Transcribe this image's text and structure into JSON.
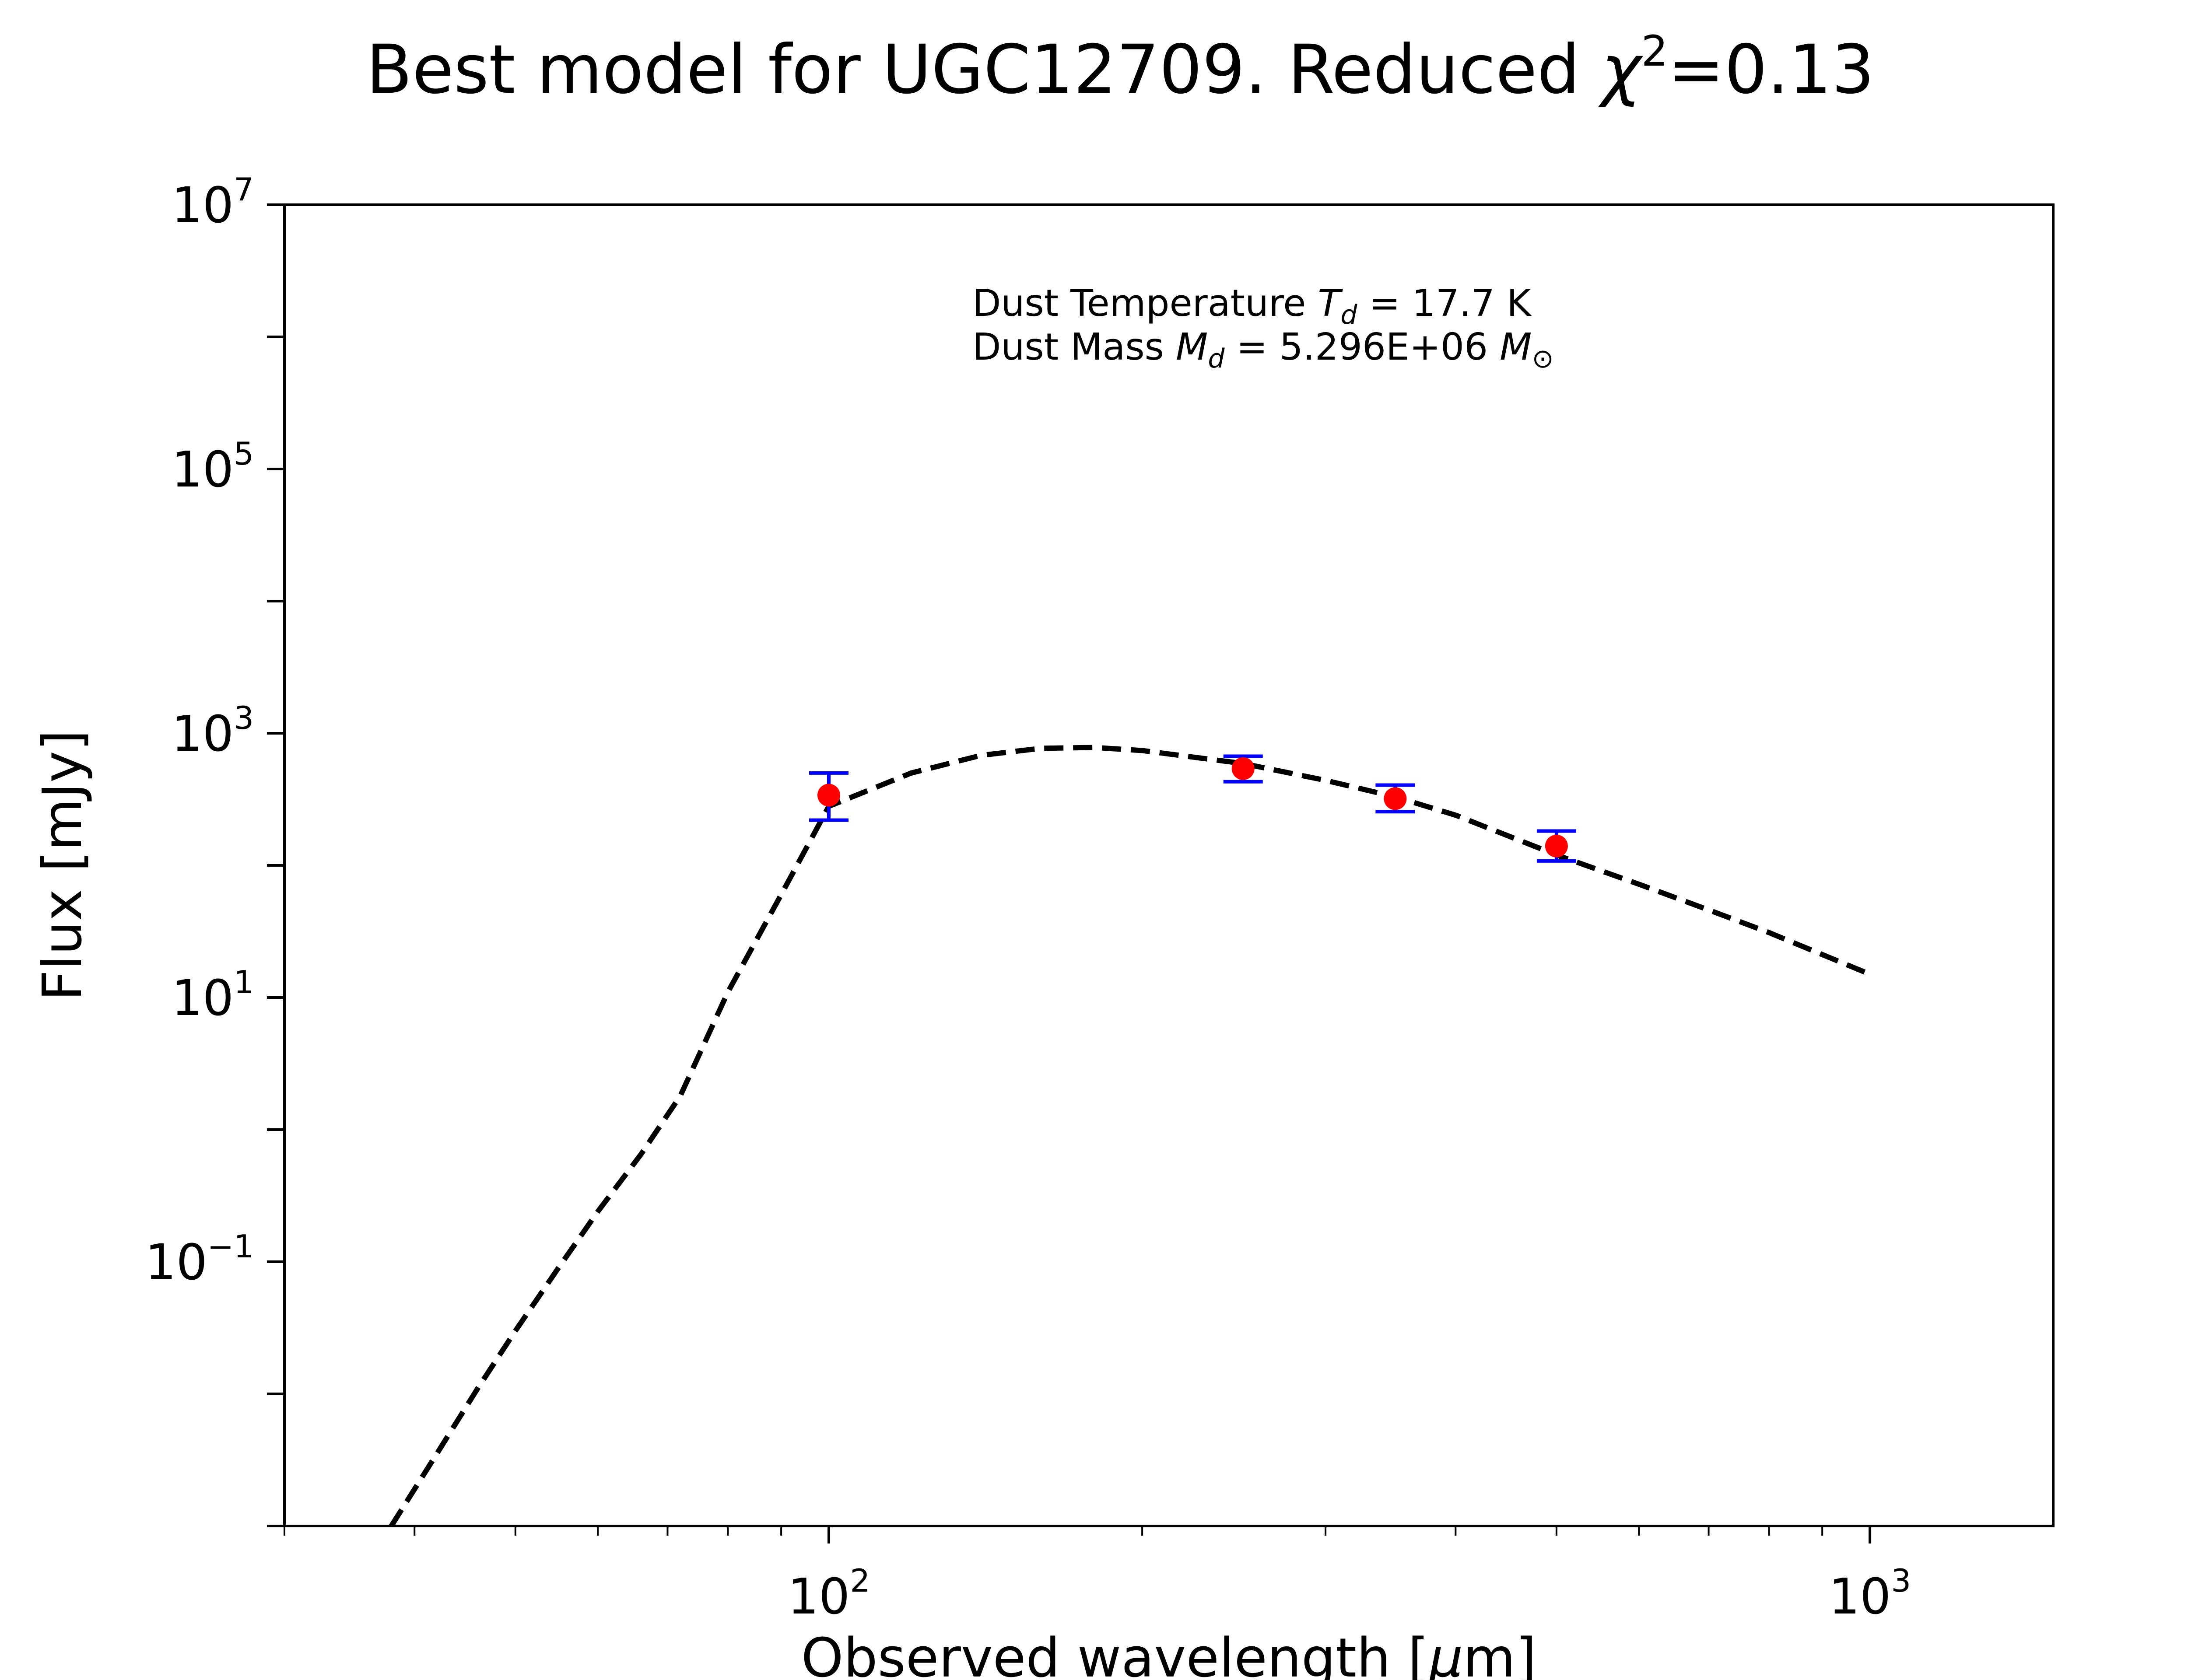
{
  "chart_data": {
    "type": "scatter",
    "title": "Best model for UGC12709. Reduced χ²=0.13",
    "title_parts": {
      "prefix": "Best model for UGC12709. Reduced ",
      "symbol": "χ",
      "power": "2",
      "suffix": "=0.13"
    },
    "xlabel": "Observed wavelength [μm]",
    "xlabel_parts": {
      "prefix": "Observed wavelength [",
      "unit_italic": "μ",
      "unit_rest": "m]"
    },
    "ylabel": "Flux [mJy]",
    "x_scale": "log",
    "y_scale": "log",
    "xlim": [
      30,
      1500
    ],
    "ylim": [
      0.001,
      10000000
    ],
    "x_ticks": [
      {
        "value": 100,
        "base": "10",
        "exp": "2"
      },
      {
        "value": 1000,
        "base": "10",
        "exp": "3"
      }
    ],
    "y_ticks": [
      {
        "value": 10000000,
        "base": "10",
        "exp": "7"
      },
      {
        "value": 100000,
        "base": "10",
        "exp": "5"
      },
      {
        "value": 1000,
        "base": "10",
        "exp": "3"
      },
      {
        "value": 10,
        "base": "10",
        "exp": "1"
      },
      {
        "value": 0.1,
        "base": "10",
        "exp": "−1"
      }
    ],
    "grid": false,
    "annotation": {
      "line1": {
        "prefix": "Dust Temperature ",
        "var": "T",
        "sub": "d",
        "value": " = 17.7 K"
      },
      "line2": {
        "prefix": "Dust Mass ",
        "var": "M",
        "sub": "d",
        "value": " = 5.296E+06 ",
        "unit_var": "M",
        "unit_sub": "⊙"
      }
    },
    "series": [
      {
        "kind": "observed",
        "marker_color": "#ff0000",
        "errorbar_color": "#0000ff",
        "points": [
          {
            "x": 100,
            "y": 340,
            "y_low": 220,
            "y_high": 500
          },
          {
            "x": 250,
            "y": 540,
            "y_low": 430,
            "y_high": 670
          },
          {
            "x": 350,
            "y": 320,
            "y_low": 255,
            "y_high": 405
          },
          {
            "x": 500,
            "y": 140,
            "y_low": 108,
            "y_high": 182
          }
        ]
      },
      {
        "kind": "model",
        "line_style": "dashed",
        "line_color": "#000000",
        "points": [
          {
            "x": 38,
            "y": 0.001
          },
          {
            "x": 42,
            "y": 0.0035
          },
          {
            "x": 46,
            "y": 0.011
          },
          {
            "x": 50,
            "y": 0.03
          },
          {
            "x": 55,
            "y": 0.09
          },
          {
            "x": 60,
            "y": 0.24
          },
          {
            "x": 66,
            "y": 0.65
          },
          {
            "x": 72,
            "y": 1.8
          },
          {
            "x": 80,
            "y": 11
          },
          {
            "x": 90,
            "y": 60
          },
          {
            "x": 100,
            "y": 280
          },
          {
            "x": 120,
            "y": 500
          },
          {
            "x": 140,
            "y": 680
          },
          {
            "x": 160,
            "y": 770
          },
          {
            "x": 180,
            "y": 780
          },
          {
            "x": 200,
            "y": 740
          },
          {
            "x": 250,
            "y": 590
          },
          {
            "x": 300,
            "y": 440
          },
          {
            "x": 350,
            "y": 330
          },
          {
            "x": 400,
            "y": 240
          },
          {
            "x": 500,
            "y": 120
          },
          {
            "x": 600,
            "y": 72
          },
          {
            "x": 700,
            "y": 46
          },
          {
            "x": 800,
            "y": 31
          },
          {
            "x": 1000,
            "y": 15
          }
        ]
      }
    ]
  }
}
